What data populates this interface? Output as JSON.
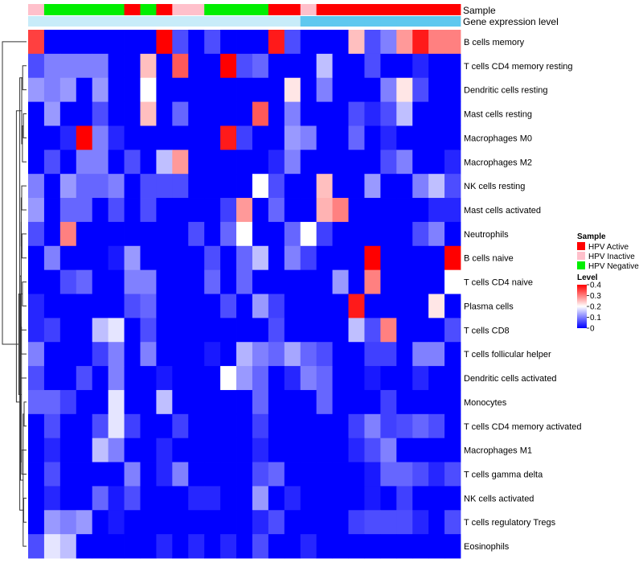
{
  "chart_data": {
    "type": "heatmap",
    "title": "",
    "annotation_labels": {
      "sample": "Sample",
      "gene": "Gene expression level"
    },
    "row_labels": [
      "B cells memory",
      "T cells CD4 memory resting",
      "Dendritic cells resting",
      "Mast cells resting",
      "Macrophages M0",
      "Macrophages M2",
      "NK cells resting",
      "Mast cells activated",
      "Neutrophils",
      "B cells naive",
      "T cells CD4 naive",
      "Plasma cells",
      "T cells CD8",
      "T cells follicular helper",
      "Dendritic cells activated",
      "Monocytes",
      "T cells CD4 memory activated",
      "Macrophages M1",
      "T cells gamma delta",
      "NK cells activated",
      "T cells regulatory  Tregs",
      "Eosinophils"
    ],
    "column_sample": [
      "HPV Inactive",
      "HPV Negative",
      "HPV Negative",
      "HPV Negative",
      "HPV Negative",
      "HPV Negative",
      "HPV Active",
      "HPV Negative",
      "HPV Active",
      "HPV Inactive",
      "HPV Inactive",
      "HPV Negative",
      "HPV Negative",
      "HPV Negative",
      "HPV Negative",
      "HPV Active",
      "HPV Active",
      "HPV Inactive",
      "HPV Active",
      "HPV Active",
      "HPV Active",
      "HPV Active",
      "HPV Active",
      "HPV Active",
      "HPV Active",
      "HPV Active",
      "HPV Active"
    ],
    "column_gene_level": [
      0.1,
      0.1,
      0.1,
      0.1,
      0.1,
      0.1,
      0.1,
      0.1,
      0.1,
      0.1,
      0.1,
      0.1,
      0.1,
      0.1,
      0.1,
      0.1,
      0.1,
      0.2,
      0.2,
      0.2,
      0.2,
      0.2,
      0.2,
      0.2,
      0.2,
      0.2,
      0.2
    ],
    "values": [
      [
        0.35,
        0,
        0,
        0,
        0,
        0,
        0,
        0,
        0.4,
        0.06,
        0,
        0.06,
        0,
        0,
        0,
        0.38,
        0.06,
        0,
        0,
        0,
        0.25,
        0.06,
        0.1,
        0.28,
        0.38,
        0.3,
        0.3
      ],
      [
        0.06,
        0.1,
        0.1,
        0.1,
        0.1,
        0,
        0,
        0.25,
        0,
        0.33,
        0,
        0,
        0.4,
        0.06,
        0.08,
        0,
        0,
        0,
        0.15,
        0,
        0,
        0.06,
        0,
        0,
        0.03,
        0,
        0
      ],
      [
        0.12,
        0.1,
        0.12,
        0,
        0.12,
        0,
        0,
        0.2,
        0,
        0,
        0,
        0,
        0,
        0,
        0,
        0,
        0.22,
        0,
        0.1,
        0,
        0,
        0,
        0.1,
        0.22,
        0.06,
        0,
        0
      ],
      [
        0,
        0.12,
        0,
        0,
        0.06,
        0,
        0,
        0.25,
        0,
        0.08,
        0,
        0,
        0,
        0,
        0.33,
        0,
        0.1,
        0,
        0,
        0,
        0.06,
        0.03,
        0.06,
        0.15,
        0,
        0,
        0
      ],
      [
        0,
        0,
        0.03,
        0.4,
        0.1,
        0.03,
        0,
        0,
        0,
        0,
        0,
        0,
        0.38,
        0.05,
        0,
        0,
        0.12,
        0.1,
        0,
        0,
        0.08,
        0,
        0.03,
        0,
        0,
        0,
        0
      ],
      [
        0,
        0.06,
        0,
        0.1,
        0.1,
        0,
        0.06,
        0,
        0.15,
        0.28,
        0,
        0,
        0,
        0,
        0,
        0.03,
        0.1,
        0,
        0,
        0,
        0,
        0,
        0.06,
        0.1,
        0,
        0,
        0.03
      ],
      [
        0.1,
        0,
        0.12,
        0.08,
        0.08,
        0.1,
        0,
        0.06,
        0.06,
        0.06,
        0,
        0,
        0,
        0,
        0.2,
        0.06,
        0,
        0,
        0.25,
        0,
        0,
        0.12,
        0,
        0,
        0.1,
        0.15,
        0.06
      ],
      [
        0.12,
        0,
        0.08,
        0.08,
        0,
        0.06,
        0,
        0.06,
        0,
        0,
        0,
        0,
        0.05,
        0.28,
        0,
        0.08,
        0,
        0,
        0.26,
        0.3,
        0,
        0,
        0,
        0,
        0,
        0.03,
        0.03
      ],
      [
        0.06,
        0,
        0.3,
        0,
        0,
        0,
        0,
        0,
        0,
        0,
        0.06,
        0,
        0.08,
        0.2,
        0,
        0,
        0.08,
        0.2,
        0.05,
        0,
        0,
        0,
        0,
        0,
        0.06,
        0.1,
        0
      ],
      [
        0,
        0.1,
        0,
        0,
        0,
        0.02,
        0.12,
        0,
        0,
        0,
        0,
        0.06,
        0,
        0.08,
        0.15,
        0,
        0.1,
        0.05,
        0,
        0,
        0,
        0.4,
        0,
        0,
        0,
        0,
        0.4
      ],
      [
        0,
        0,
        0.06,
        0.08,
        0,
        0,
        0.1,
        0.1,
        0,
        0,
        0,
        0.08,
        0,
        0.08,
        0,
        0,
        0,
        0,
        0,
        0.12,
        0,
        0.3,
        0,
        0,
        0,
        0,
        0.2
      ],
      [
        0.03,
        0,
        0,
        0,
        0,
        0,
        0.06,
        0.08,
        0,
        0,
        0,
        0,
        0.06,
        0,
        0.12,
        0.05,
        0,
        0,
        0,
        0,
        0.38,
        0,
        0,
        0,
        0,
        0.22,
        0
      ],
      [
        0.03,
        0.05,
        0,
        0,
        0.15,
        0.18,
        0,
        0.06,
        0,
        0,
        0,
        0,
        0,
        0,
        0,
        0.06,
        0,
        0,
        0,
        0,
        0.15,
        0.06,
        0.3,
        0,
        0,
        0,
        0.06
      ],
      [
        0.1,
        0,
        0,
        0,
        0.05,
        0.1,
        0,
        0.1,
        0,
        0,
        0,
        0.02,
        0,
        0.14,
        0.1,
        0.08,
        0.13,
        0.08,
        0.06,
        0,
        0,
        0.05,
        0.05,
        0,
        0.1,
        0.1,
        0
      ],
      [
        0.06,
        0,
        0,
        0.06,
        0,
        0.1,
        0,
        0,
        0.02,
        0,
        0,
        0,
        0.2,
        0.12,
        0.08,
        0,
        0.03,
        0.1,
        0.08,
        0,
        0,
        0.02,
        0,
        0,
        0.03,
        0,
        0
      ],
      [
        0.08,
        0.08,
        0.05,
        0,
        0,
        0.18,
        0,
        0,
        0.15,
        0,
        0,
        0,
        0,
        0,
        0.08,
        0,
        0,
        0,
        0.08,
        0,
        0,
        0,
        0.05,
        0,
        0,
        0,
        0
      ],
      [
        0,
        0.06,
        0,
        0,
        0.06,
        0.18,
        0.05,
        0,
        0,
        0.05,
        0,
        0,
        0,
        0,
        0.05,
        0,
        0,
        0,
        0,
        0,
        0.05,
        0.1,
        0.05,
        0.06,
        0.08,
        0.06,
        0
      ],
      [
        0,
        0.03,
        0,
        0,
        0.15,
        0.1,
        0,
        0,
        0.03,
        0,
        0,
        0,
        0,
        0,
        0.03,
        0,
        0,
        0,
        0,
        0,
        0.03,
        0.06,
        0.1,
        0,
        0,
        0,
        0
      ],
      [
        0,
        0.06,
        0,
        0,
        0,
        0,
        0.1,
        0,
        0.03,
        0.1,
        0,
        0,
        0,
        0,
        0.06,
        0.08,
        0,
        0,
        0,
        0,
        0,
        0.02,
        0.08,
        0.08,
        0.06,
        0.03,
        0.06
      ],
      [
        0,
        0.03,
        0,
        0,
        0.08,
        0.02,
        0.06,
        0,
        0,
        0,
        0.03,
        0.03,
        0,
        0,
        0.12,
        0,
        0.03,
        0,
        0,
        0,
        0,
        0.02,
        0,
        0.05,
        0,
        0,
        0
      ],
      [
        0,
        0.12,
        0.1,
        0.12,
        0,
        0.02,
        0,
        0,
        0,
        0,
        0,
        0,
        0,
        0,
        0.03,
        0.06,
        0,
        0,
        0,
        0,
        0.05,
        0.06,
        0.06,
        0.06,
        0.03,
        0,
        0.06
      ],
      [
        0.06,
        0.18,
        0.15,
        0,
        0,
        0,
        0,
        0,
        0.03,
        0,
        0.03,
        0,
        0.03,
        0,
        0.06,
        0,
        0,
        0.03,
        0,
        0,
        0,
        0,
        0,
        0,
        0,
        0,
        0
      ]
    ],
    "row_dendrogram": [
      [
        0.16,
        1,
        2
      ],
      [
        0.13,
        3,
        4
      ],
      [
        0.17,
        5,
        23
      ],
      [
        0.2,
        22,
        24
      ],
      [
        0.2,
        6,
        7
      ],
      [
        0.19,
        8,
        9
      ],
      [
        0.22,
        26,
        27
      ],
      [
        0.17,
        10,
        11
      ],
      [
        0.22,
        28,
        12
      ],
      [
        0.24,
        29,
        13
      ],
      [
        0.27,
        30,
        14
      ],
      [
        0.1,
        15,
        16
      ],
      [
        0.2,
        17,
        18
      ],
      [
        0.12,
        19,
        20
      ],
      [
        0.14,
        33,
        21
      ],
      [
        0.21,
        32,
        34
      ],
      [
        0.28,
        35,
        22
      ],
      [
        0.25,
        31,
        36
      ],
      [
        0.32,
        37,
        38
      ],
      [
        0.42,
        25,
        39
      ],
      [
        1.0,
        0,
        40
      ]
    ],
    "legend": {
      "sample_title": "Sample",
      "sample_items": [
        {
          "label": "HPV Active",
          "color": "#ff0000"
        },
        {
          "label": "HPV Inactive",
          "color": "#ffc0cb"
        },
        {
          "label": "HPV Negative",
          "color": "#00ee00"
        }
      ],
      "level_title": "Level",
      "level_ticks": [
        "0.4",
        "0.3",
        "0.2",
        "0.1",
        "0"
      ],
      "level_range": [
        0,
        0.4
      ]
    },
    "color_scale": {
      "low": "#0000ff",
      "mid": "#ffffff",
      "high": "#ff0000",
      "low_value": 0,
      "mid_value": 0.2,
      "high_value": 0.4
    },
    "gene_level_colors": {
      "0.1": "#c8ecf9",
      "0.2": "#5fc8ef"
    }
  }
}
